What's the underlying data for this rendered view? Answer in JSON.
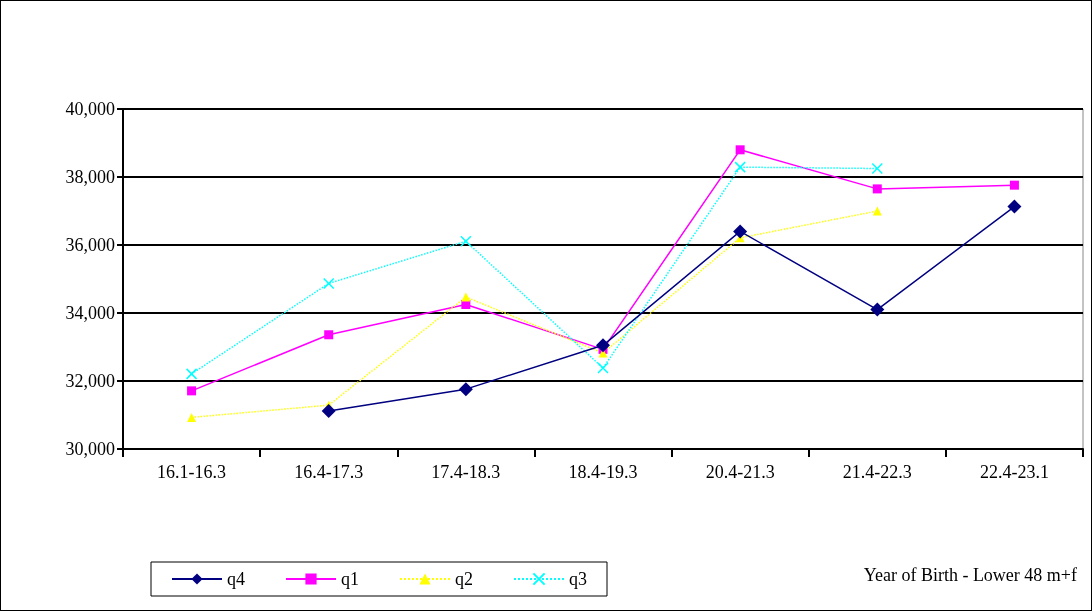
{
  "chart_data": {
    "type": "line",
    "xlabel": "Year of Birth - Lower 48 m+f",
    "categories": [
      "16.1-16.3",
      "16.4-17.3",
      "17.4-18.3",
      "18.4-19.3",
      "20.4-21.3",
      "21.4-22.3",
      "22.4-23.1"
    ],
    "series": [
      {
        "name": "q4",
        "color": "#000080",
        "marker": "diamond",
        "line_style": "solid",
        "values": [
          null,
          31120,
          31760,
          33050,
          36400,
          34100,
          37130
        ]
      },
      {
        "name": "q1",
        "color": "#ff00ff",
        "marker": "square",
        "line_style": "solid",
        "values": [
          31710,
          33360,
          34250,
          32930,
          38800,
          37650,
          37760
        ]
      },
      {
        "name": "q2",
        "color": "#ffff00",
        "marker": "triangle",
        "line_style": "dotted",
        "values": [
          30930,
          31290,
          34470,
          32820,
          36210,
          37000,
          null
        ]
      },
      {
        "name": "q3",
        "color": "#00ffff",
        "marker": "cross",
        "line_style": "dotted",
        "values": [
          32210,
          34870,
          36110,
          32380,
          38290,
          38250,
          null
        ]
      }
    ],
    "ylim": [
      30000,
      40000
    ],
    "yticks": [
      {
        "value": 30000,
        "label": "30,000"
      },
      {
        "value": 32000,
        "label": "32,000"
      },
      {
        "value": 34000,
        "label": "34,000"
      },
      {
        "value": 36000,
        "label": "36,000"
      },
      {
        "value": 38000,
        "label": "38,000"
      },
      {
        "value": 40000,
        "label": "40,000"
      }
    ],
    "grid": "y",
    "legend": "bottom"
  }
}
